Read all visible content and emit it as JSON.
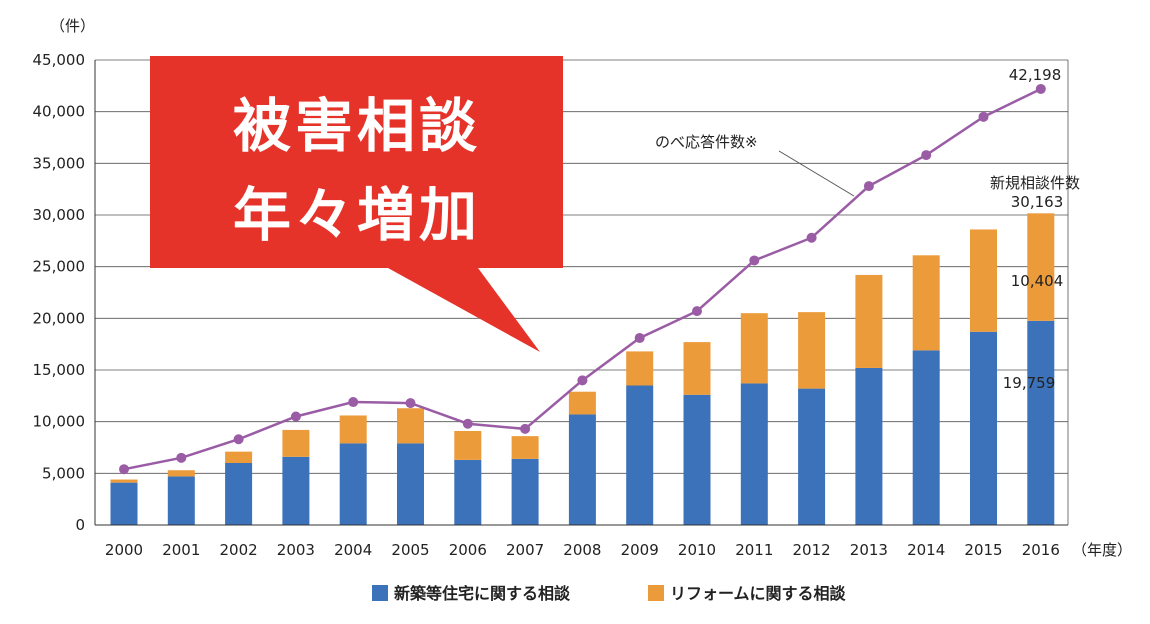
{
  "chart_data": {
    "type": "bar",
    "stacked": true,
    "y_unit": "（件）",
    "x_unit": "（年度）",
    "ylim": [
      0,
      45000
    ],
    "yticks": [
      0,
      5000,
      10000,
      15000,
      20000,
      25000,
      30000,
      35000,
      40000,
      45000
    ],
    "ytick_labels": [
      "0",
      "5,000",
      "10,000",
      "15,000",
      "20,000",
      "25,000",
      "30,000",
      "35,000",
      "40,000",
      "45,000"
    ],
    "grid": true,
    "categories": [
      "2000",
      "2001",
      "2002",
      "2003",
      "2004",
      "2005",
      "2006",
      "2007",
      "2008",
      "2009",
      "2010",
      "2011",
      "2012",
      "2013",
      "2014",
      "2015",
      "2016"
    ],
    "series": [
      {
        "name": "新築等住宅に関する相談",
        "color": "#3b72b9",
        "kind": "bar",
        "values": [
          4100,
          4700,
          6000,
          6600,
          7900,
          7900,
          6300,
          6400,
          10700,
          13500,
          12600,
          13700,
          13200,
          15200,
          16900,
          18700,
          19759
        ]
      },
      {
        "name": "リフォームに関する相談",
        "color": "#ec9b3a",
        "kind": "bar",
        "values": [
          300,
          600,
          1100,
          2600,
          2700,
          3400,
          2800,
          2200,
          2200,
          3300,
          5100,
          6800,
          7400,
          9000,
          9200,
          9900,
          10404
        ]
      },
      {
        "name": "のべ応答件数※",
        "color": "#9a5ca5",
        "kind": "line",
        "values": [
          5400,
          6500,
          8300,
          10500,
          11900,
          11800,
          9800,
          9300,
          14000,
          18100,
          20700,
          25600,
          27800,
          32800,
          35800,
          39500,
          42198
        ]
      }
    ],
    "annotations": {
      "line_label": "のべ応答件数※",
      "line_last_value": "42,198",
      "total_label": "新規相談件数",
      "total_value": "30,163",
      "orange_last_value": "10,404",
      "blue_last_value": "19,759"
    },
    "legend_position": "bottom-center"
  },
  "callout": {
    "line1": "被害相談",
    "line2": "年々増加",
    "color": "#e5332a"
  }
}
